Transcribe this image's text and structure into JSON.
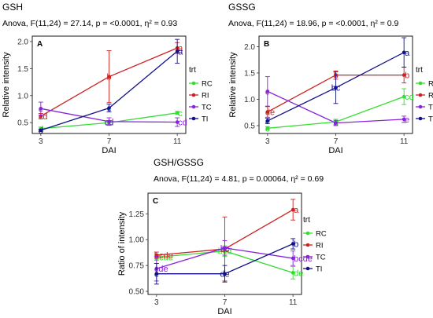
{
  "chart_data": [
    {
      "type": "line",
      "id": "gsh",
      "panel_label": "A",
      "heading": "GSH",
      "stats_text": "Anova, F(11,24) = 27.14, p = <0.0001, η² = 0.93",
      "xlabel": "DAI",
      "ylabel": "Relative intensity",
      "x": [
        3,
        7,
        11
      ],
      "ylim": [
        0.3,
        2.1
      ],
      "yticks": [
        0.5,
        1.0,
        1.5,
        2.0
      ],
      "yticklabels": [
        "0.5",
        "1.0",
        "1.5",
        "2.0"
      ],
      "legend": {
        "title": "trt",
        "position": "right",
        "entries": [
          "RC",
          "RI",
          "TC",
          "TI"
        ]
      },
      "series": [
        {
          "name": "RC",
          "color": "#33dd33",
          "values": [
            0.39,
            0.5,
            0.68
          ],
          "err": [
            0.03,
            0.04,
            0.03
          ],
          "letters": [
            "d",
            "cd",
            "c"
          ]
        },
        {
          "name": "RI",
          "color": "#cc2222",
          "values": [
            0.62,
            1.35,
            1.88
          ],
          "err": [
            0.05,
            0.48,
            0.1
          ],
          "letters": [
            "cd",
            "b",
            "a"
          ]
        },
        {
          "name": "TC",
          "color": "#8822dd",
          "values": [
            0.76,
            0.52,
            0.51
          ],
          "err": [
            0.12,
            0.07,
            0.08
          ],
          "letters": [
            "c",
            "cd",
            "cd"
          ]
        },
        {
          "name": "TI",
          "color": "#111188",
          "values": [
            0.36,
            0.77,
            1.82
          ],
          "err": [
            0.02,
            0.07,
            0.22
          ],
          "letters": [
            "d",
            "c",
            "a"
          ]
        }
      ]
    },
    {
      "type": "line",
      "id": "gssg",
      "panel_label": "B",
      "heading": "GSSG",
      "stats_text": "Anova, F(11,24) = 18.96, p = <0.0001, η² = 0.9",
      "xlabel": "DAI",
      "ylabel": "Relative intensity",
      "x": [
        3,
        7,
        11
      ],
      "ylim": [
        0.35,
        2.2
      ],
      "yticks": [
        0.5,
        1.0,
        1.5,
        2.0
      ],
      "yticklabels": [
        "0.5",
        "1.0",
        "1.5",
        "2.0"
      ],
      "legend": {
        "title": "trt",
        "position": "right",
        "entries": [
          "RC",
          "RI",
          "TC",
          "TI"
        ]
      },
      "series": [
        {
          "name": "RC",
          "color": "#33dd33",
          "values": [
            0.45,
            0.57,
            1.05
          ],
          "err": [
            0.03,
            0.05,
            0.15
          ],
          "letters": [
            "e",
            "e",
            "cd"
          ]
        },
        {
          "name": "RI",
          "color": "#cc2222",
          "values": [
            0.76,
            1.46,
            1.46
          ],
          "err": [
            0.1,
            0.08,
            0.15
          ],
          "letters": [
            "de",
            "b",
            "b"
          ]
        },
        {
          "name": "TC",
          "color": "#8822dd",
          "values": [
            1.15,
            0.55,
            0.62
          ],
          "err": [
            0.28,
            0.05,
            0.06
          ],
          "letters": [
            "c",
            "e",
            "e"
          ]
        },
        {
          "name": "TI",
          "color": "#111188",
          "values": [
            0.59,
            1.22,
            1.89
          ],
          "err": [
            0.05,
            0.3,
            0.28
          ],
          "letters": [
            "e",
            "bc",
            "a"
          ]
        }
      ]
    },
    {
      "type": "line",
      "id": "ratio",
      "panel_label": "C",
      "heading": "GSH/GSSG",
      "stats_text": "Anova, F(11,24) = 4.81, p = 0.00064, η² = 0.69",
      "xlabel": "DAI",
      "ylabel": "Ratio of intensity",
      "x": [
        3,
        7,
        11
      ],
      "ylim": [
        0.47,
        1.45
      ],
      "yticks": [
        0.5,
        0.75,
        1.0,
        1.25
      ],
      "yticklabels": [
        "0.50",
        "0.75",
        "1.00",
        "1.25"
      ],
      "legend": {
        "title": "trt",
        "position": "right",
        "entries": [
          "RC",
          "RI",
          "TC",
          "TI"
        ]
      },
      "series": [
        {
          "name": "RC",
          "color": "#33dd33",
          "values": [
            0.83,
            0.89,
            0.68
          ],
          "err": [
            0.03,
            0.05,
            0.06
          ],
          "letters": [
            "bcde",
            "bcd",
            "de"
          ]
        },
        {
          "name": "RI",
          "color": "#cc2222",
          "values": [
            0.85,
            0.91,
            1.29
          ],
          "err": [
            0.03,
            0.31,
            0.1
          ],
          "letters": [
            "bcde",
            "bc",
            "a"
          ]
        },
        {
          "name": "TC",
          "color": "#8822dd",
          "values": [
            0.72,
            0.92,
            0.82
          ],
          "err": [
            0.12,
            0.07,
            0.07
          ],
          "letters": [
            "cde",
            "bc",
            "bcde"
          ]
        },
        {
          "name": "TI",
          "color": "#111188",
          "values": [
            0.67,
            0.67,
            0.96
          ],
          "err": [
            0.1,
            0.08,
            0.05
          ],
          "letters": [
            "e",
            "de",
            "b"
          ]
        }
      ]
    }
  ]
}
